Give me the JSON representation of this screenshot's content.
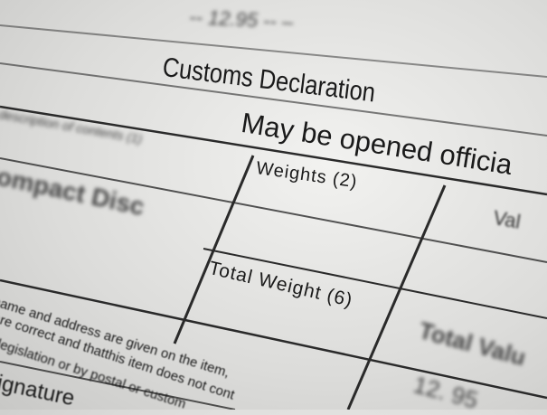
{
  "form": {
    "top_value": "-- 12.95 -- –",
    "title": "Customs Declaration",
    "notice": "May be opened officia",
    "left_label": "description of contents (1)",
    "left_item": "Compact Disc",
    "weights_label": "Weights (2)",
    "value_label": "Val",
    "total_weight_label": "Total Weight (6)",
    "total_value_label": "Total Valu",
    "total_value": "12. 95",
    "declaration_lines": [
      "name and address are given on the item,",
      "are correct and thatthis item does not cont",
      "legislation or by postal or custom"
    ],
    "signature_label": "ignature"
  }
}
